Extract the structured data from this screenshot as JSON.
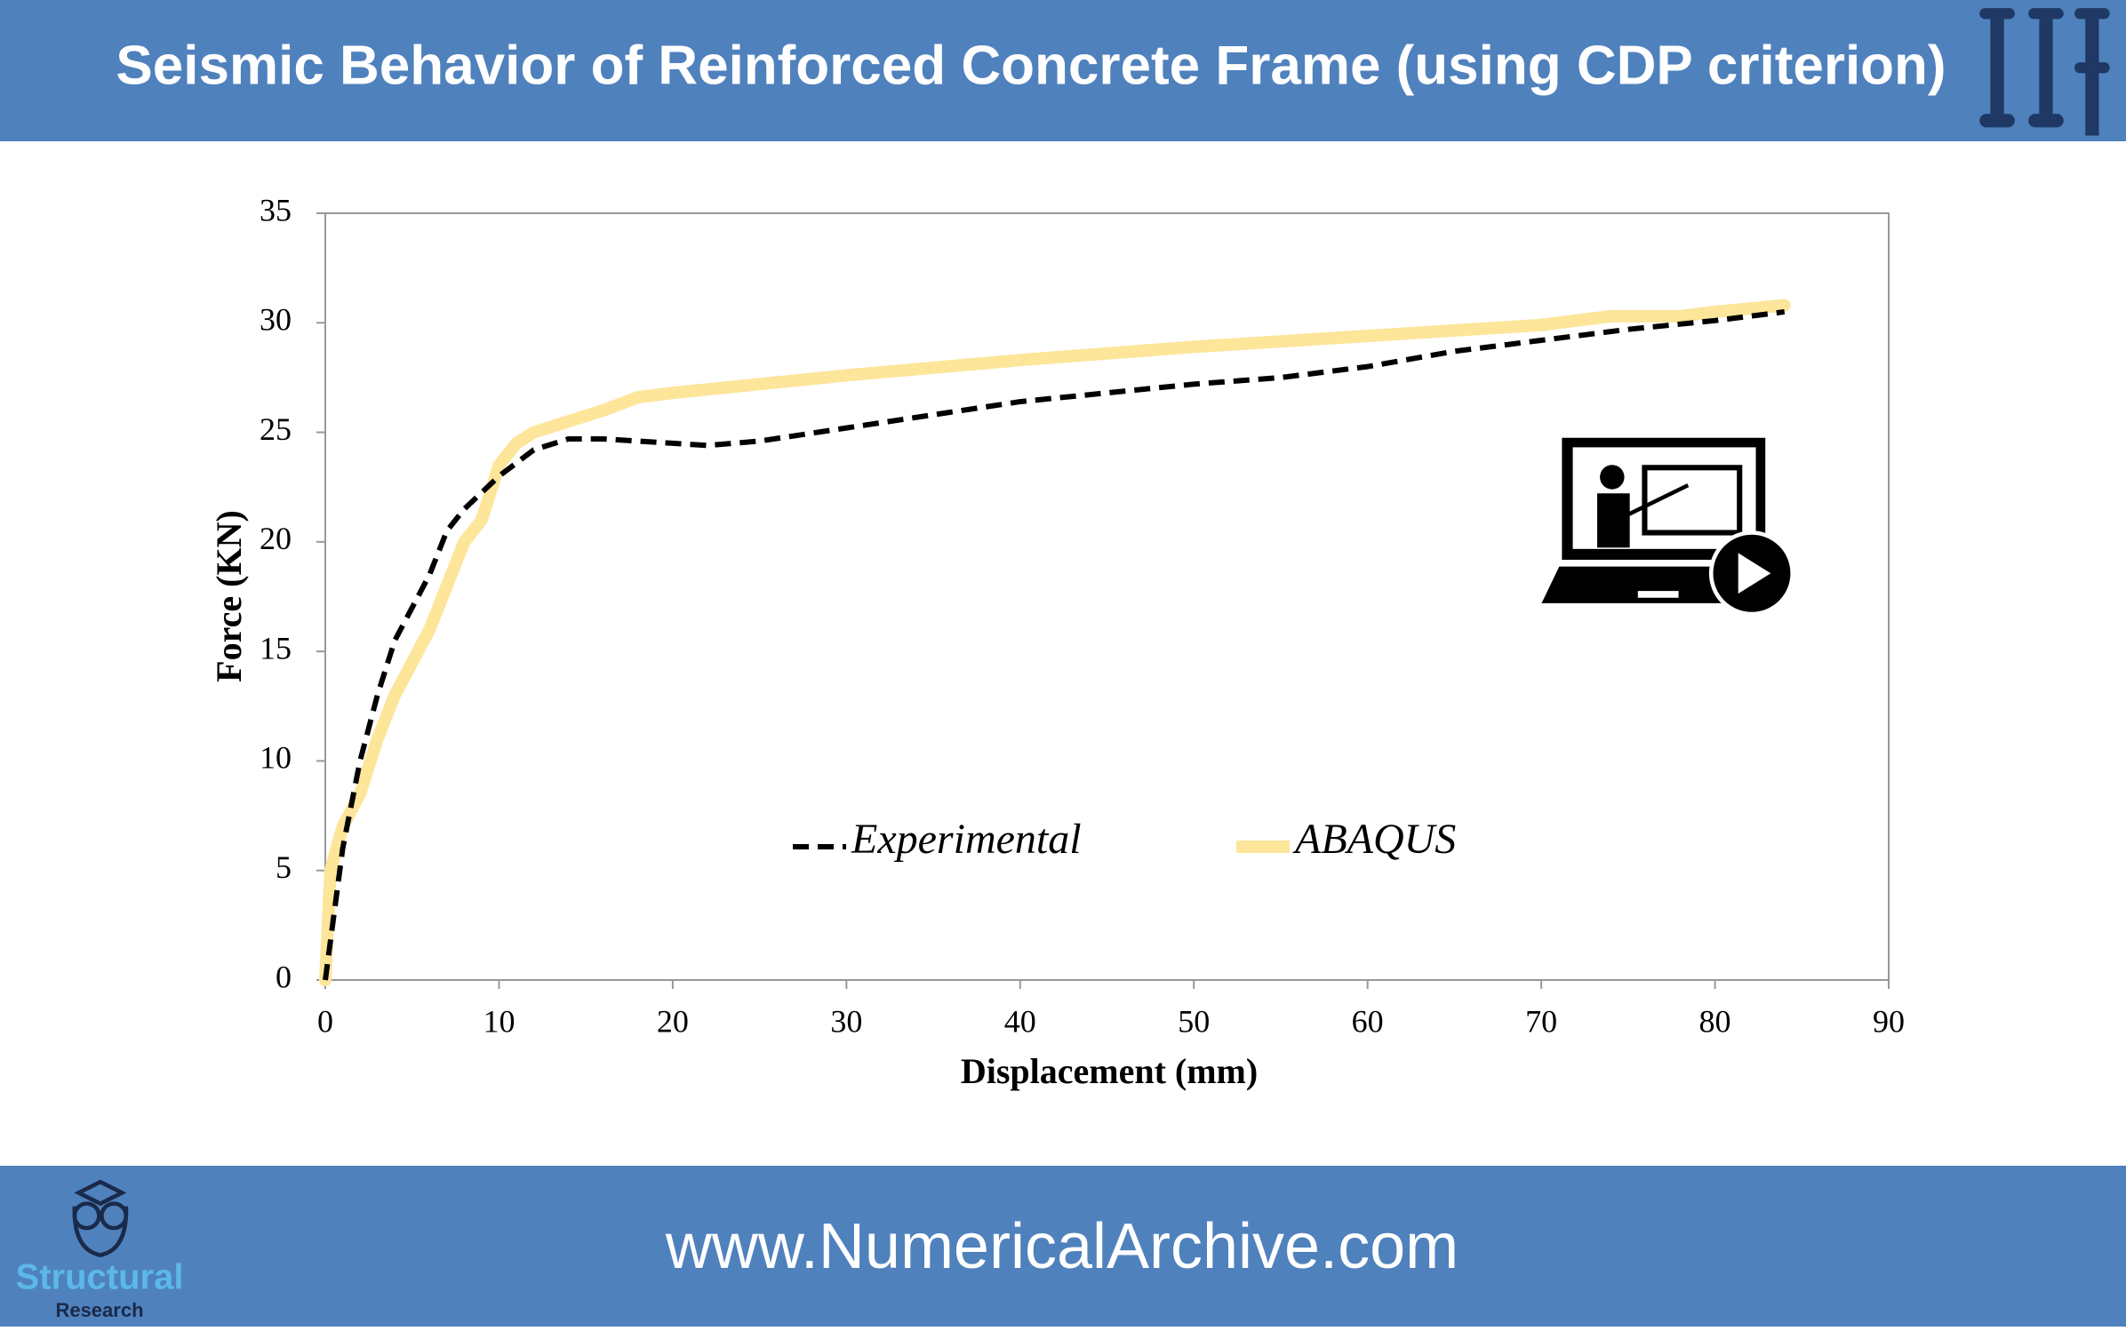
{
  "header": {
    "title": "Seismic Behavior of Reinforced Concrete Frame (using CDP criterion)"
  },
  "chart_data": {
    "type": "line",
    "xlabel": "Displacement (mm)",
    "ylabel": "Force (KN)",
    "xlim": [
      0,
      90
    ],
    "xticks": [
      0,
      10,
      20,
      30,
      40,
      50,
      60,
      70,
      80,
      90
    ],
    "ylim": [
      0,
      35
    ],
    "yticks": [
      0,
      5,
      10,
      15,
      20,
      25,
      30,
      35
    ],
    "grid": false,
    "series": [
      {
        "name": "Experimental",
        "color": "#000000",
        "dash": true,
        "x": [
          0,
          0.5,
          1,
          2,
          3,
          4,
          5,
          6,
          7,
          8,
          10,
          12,
          14,
          16,
          18,
          20,
          22,
          25,
          30,
          35,
          40,
          45,
          50,
          55,
          60,
          65,
          70,
          75,
          80,
          84
        ],
        "values": [
          0,
          3,
          6,
          10,
          13,
          15.5,
          17,
          18.5,
          20.5,
          21.5,
          23,
          24.2,
          24.7,
          24.7,
          24.6,
          24.5,
          24.4,
          24.6,
          25.2,
          25.8,
          26.4,
          26.8,
          27.2,
          27.5,
          28,
          28.7,
          29.2,
          29.7,
          30.1,
          30.5
        ]
      },
      {
        "name": "ABAQUS",
        "color": "#fde59a",
        "dash": false,
        "x": [
          0,
          0.3,
          1,
          2,
          3,
          4,
          5,
          6,
          7,
          8,
          9,
          10,
          11,
          12,
          14,
          16,
          18,
          20,
          25,
          30,
          40,
          50,
          60,
          70,
          74,
          76,
          78,
          80,
          84
        ],
        "values": [
          0,
          5,
          7,
          8.5,
          11,
          13,
          14.5,
          16,
          18,
          20,
          21,
          23.5,
          24.5,
          25,
          25.5,
          26,
          26.6,
          26.8,
          27.2,
          27.6,
          28.3,
          28.9,
          29.4,
          29.9,
          30.3,
          30.3,
          30.3,
          30.5,
          30.8
        ]
      }
    ]
  },
  "footer": {
    "url": "www.NumericalArchive.com",
    "logo_top": "Structural",
    "logo_bottom": "Research"
  }
}
